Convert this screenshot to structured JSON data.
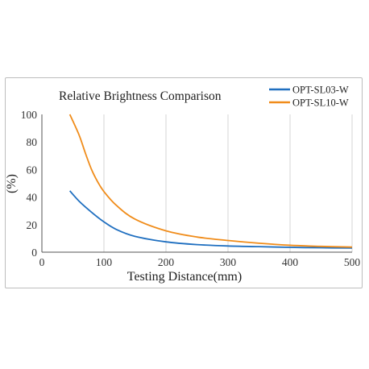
{
  "chart_data": {
    "type": "line",
    "title": "Relative Brightness Comparison",
    "xlabel": "Testing Distance(mm)",
    "ylabel": "(%)",
    "xlim": [
      0,
      500
    ],
    "ylim": [
      0,
      100
    ],
    "x_ticks": [
      0,
      100,
      200,
      300,
      400,
      500
    ],
    "y_ticks": [
      0,
      20,
      40,
      60,
      80,
      100
    ],
    "grid": "vertical",
    "legend": "top-right",
    "series": [
      {
        "name": "OPT-SL03-W",
        "color": "#1f6fc0",
        "x": [
          45,
          60,
          80,
          100,
          120,
          150,
          200,
          250,
          300,
          350,
          400,
          450,
          500
        ],
        "y": [
          44.5,
          37,
          29,
          22,
          16.5,
          11.5,
          7.5,
          5.5,
          4.5,
          4,
          3.5,
          3.2,
          3
        ]
      },
      {
        "name": "OPT-SL10-W",
        "color": "#f08c1a",
        "x": [
          45,
          60,
          70,
          80,
          90,
          100,
          120,
          150,
          200,
          250,
          300,
          350,
          400,
          450,
          500
        ],
        "y": [
          100,
          85,
          72,
          60,
          51,
          44,
          34,
          24,
          15.5,
          11,
          8.5,
          6.5,
          5,
          4.2,
          3.7
        ]
      }
    ]
  }
}
